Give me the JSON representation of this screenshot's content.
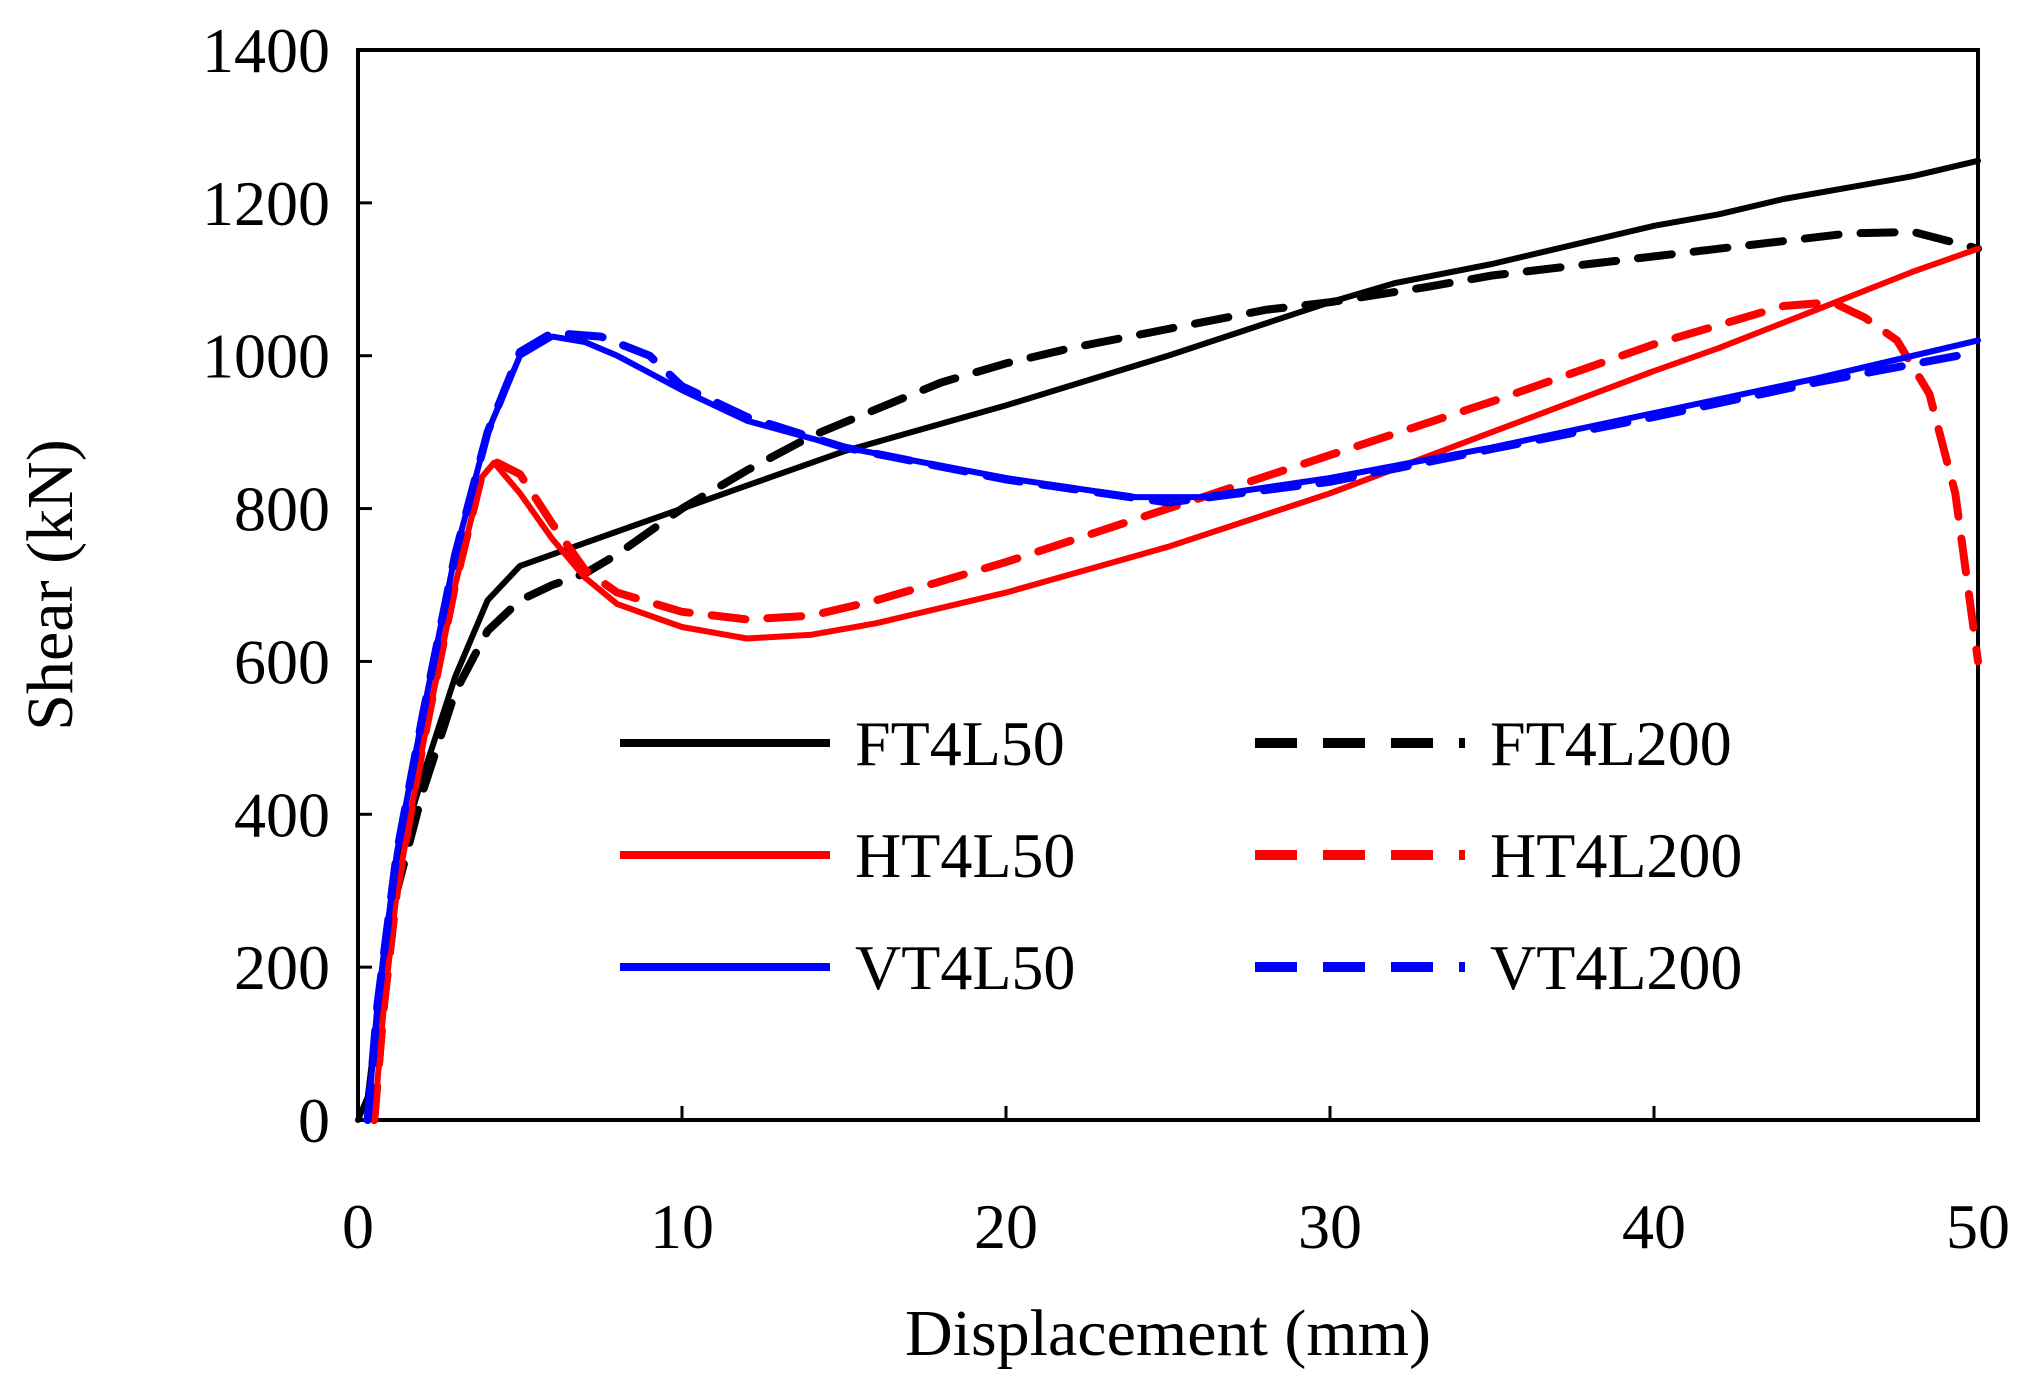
{
  "chart_data": {
    "type": "line",
    "title": "",
    "xlabel": "Displacement (mm)",
    "ylabel": "Shear (kN)",
    "xlim": [
      0,
      50
    ],
    "ylim": [
      0,
      1400
    ],
    "xticks": [
      0,
      10,
      20,
      30,
      40,
      50
    ],
    "yticks": [
      0,
      200,
      400,
      600,
      800,
      1000,
      1200,
      1400
    ],
    "grid": false,
    "legend_position": "lower-right",
    "series": [
      {
        "name": "FT4L50",
        "color": "#000000",
        "style": "solid",
        "points": [
          [
            0,
            0
          ],
          [
            0.3,
            30
          ],
          [
            0.5,
            100
          ],
          [
            0.8,
            220
          ],
          [
            1.2,
            340
          ],
          [
            2,
            450
          ],
          [
            3,
            580
          ],
          [
            4,
            680
          ],
          [
            5,
            725
          ],
          [
            6,
            740
          ],
          [
            8,
            770
          ],
          [
            10,
            800
          ],
          [
            12,
            830
          ],
          [
            15,
            875
          ],
          [
            20,
            935
          ],
          [
            25,
            1000
          ],
          [
            30,
            1070
          ],
          [
            32,
            1095
          ],
          [
            35,
            1120
          ],
          [
            38,
            1150
          ],
          [
            40,
            1170
          ],
          [
            42,
            1185
          ],
          [
            44,
            1205
          ],
          [
            46,
            1220
          ],
          [
            48,
            1235
          ],
          [
            50,
            1255
          ]
        ]
      },
      {
        "name": "FT4L200",
        "color": "#000000",
        "style": "dashed",
        "points": [
          [
            0.5,
            0
          ],
          [
            0.8,
            150
          ],
          [
            1.2,
            300
          ],
          [
            2,
            430
          ],
          [
            3,
            560
          ],
          [
            4,
            640
          ],
          [
            5,
            680
          ],
          [
            6,
            700
          ],
          [
            7,
            715
          ],
          [
            8,
            740
          ],
          [
            9,
            770
          ],
          [
            10,
            800
          ],
          [
            12,
            850
          ],
          [
            14,
            895
          ],
          [
            16,
            930
          ],
          [
            18,
            965
          ],
          [
            20,
            990
          ],
          [
            22,
            1010
          ],
          [
            25,
            1035
          ],
          [
            28,
            1060
          ],
          [
            30,
            1070
          ],
          [
            33,
            1090
          ],
          [
            35,
            1105
          ],
          [
            38,
            1120
          ],
          [
            40,
            1130
          ],
          [
            42,
            1140
          ],
          [
            44,
            1150
          ],
          [
            46,
            1160
          ],
          [
            48,
            1162
          ],
          [
            50,
            1140
          ]
        ]
      },
      {
        "name": "HT4L50",
        "color": "#ff0000",
        "style": "solid",
        "points": [
          [
            0.5,
            0
          ],
          [
            0.8,
            150
          ],
          [
            1.2,
            300
          ],
          [
            2,
            490
          ],
          [
            3,
            700
          ],
          [
            3.8,
            840
          ],
          [
            4.2,
            860
          ],
          [
            5,
            820
          ],
          [
            6,
            760
          ],
          [
            7,
            710
          ],
          [
            8,
            675
          ],
          [
            10,
            645
          ],
          [
            12,
            630
          ],
          [
            14,
            635
          ],
          [
            16,
            650
          ],
          [
            20,
            690
          ],
          [
            25,
            750
          ],
          [
            30,
            820
          ],
          [
            35,
            900
          ],
          [
            40,
            980
          ],
          [
            42,
            1010
          ],
          [
            45,
            1060
          ],
          [
            48,
            1110
          ],
          [
            50,
            1140
          ]
        ]
      },
      {
        "name": "HT4L200",
        "color": "#ff0000",
        "style": "dashed",
        "points": [
          [
            0.5,
            0
          ],
          [
            0.8,
            150
          ],
          [
            1.2,
            300
          ],
          [
            2,
            490
          ],
          [
            3,
            700
          ],
          [
            3.8,
            840
          ],
          [
            4.3,
            860
          ],
          [
            5,
            845
          ],
          [
            6,
            780
          ],
          [
            7,
            720
          ],
          [
            8,
            690
          ],
          [
            10,
            665
          ],
          [
            12,
            655
          ],
          [
            14,
            660
          ],
          [
            16,
            680
          ],
          [
            20,
            730
          ],
          [
            25,
            800
          ],
          [
            30,
            870
          ],
          [
            35,
            940
          ],
          [
            40,
            1015
          ],
          [
            44,
            1065
          ],
          [
            45.5,
            1070
          ],
          [
            46.5,
            1050
          ],
          [
            47.5,
            1020
          ],
          [
            48.5,
            950
          ],
          [
            49.3,
            820
          ],
          [
            50,
            600
          ]
        ]
      },
      {
        "name": "VT4L50",
        "color": "#0000ff",
        "style": "solid",
        "points": [
          [
            0.3,
            0
          ],
          [
            0.6,
            150
          ],
          [
            1.2,
            350
          ],
          [
            2,
            530
          ],
          [
            3,
            740
          ],
          [
            4,
            900
          ],
          [
            5,
            1000
          ],
          [
            6,
            1025
          ],
          [
            7,
            1018
          ],
          [
            8,
            1000
          ],
          [
            10,
            955
          ],
          [
            12,
            915
          ],
          [
            15,
            880
          ],
          [
            20,
            840
          ],
          [
            24,
            815
          ],
          [
            26,
            815
          ],
          [
            30,
            840
          ],
          [
            35,
            880
          ],
          [
            40,
            925
          ],
          [
            45,
            970
          ],
          [
            50,
            1020
          ]
        ]
      },
      {
        "name": "VT4L200",
        "color": "#0000ff",
        "style": "dashed",
        "points": [
          [
            0.3,
            0
          ],
          [
            0.6,
            150
          ],
          [
            1.2,
            350
          ],
          [
            2,
            530
          ],
          [
            3,
            740
          ],
          [
            4,
            900
          ],
          [
            5,
            1005
          ],
          [
            6,
            1030
          ],
          [
            7.5,
            1025
          ],
          [
            9,
            1000
          ],
          [
            10,
            960
          ],
          [
            12,
            920
          ],
          [
            15,
            880
          ],
          [
            20,
            838
          ],
          [
            25,
            808
          ],
          [
            30,
            835
          ],
          [
            35,
            878
          ],
          [
            40,
            920
          ],
          [
            45,
            965
          ],
          [
            50,
            1005
          ]
        ]
      }
    ]
  }
}
